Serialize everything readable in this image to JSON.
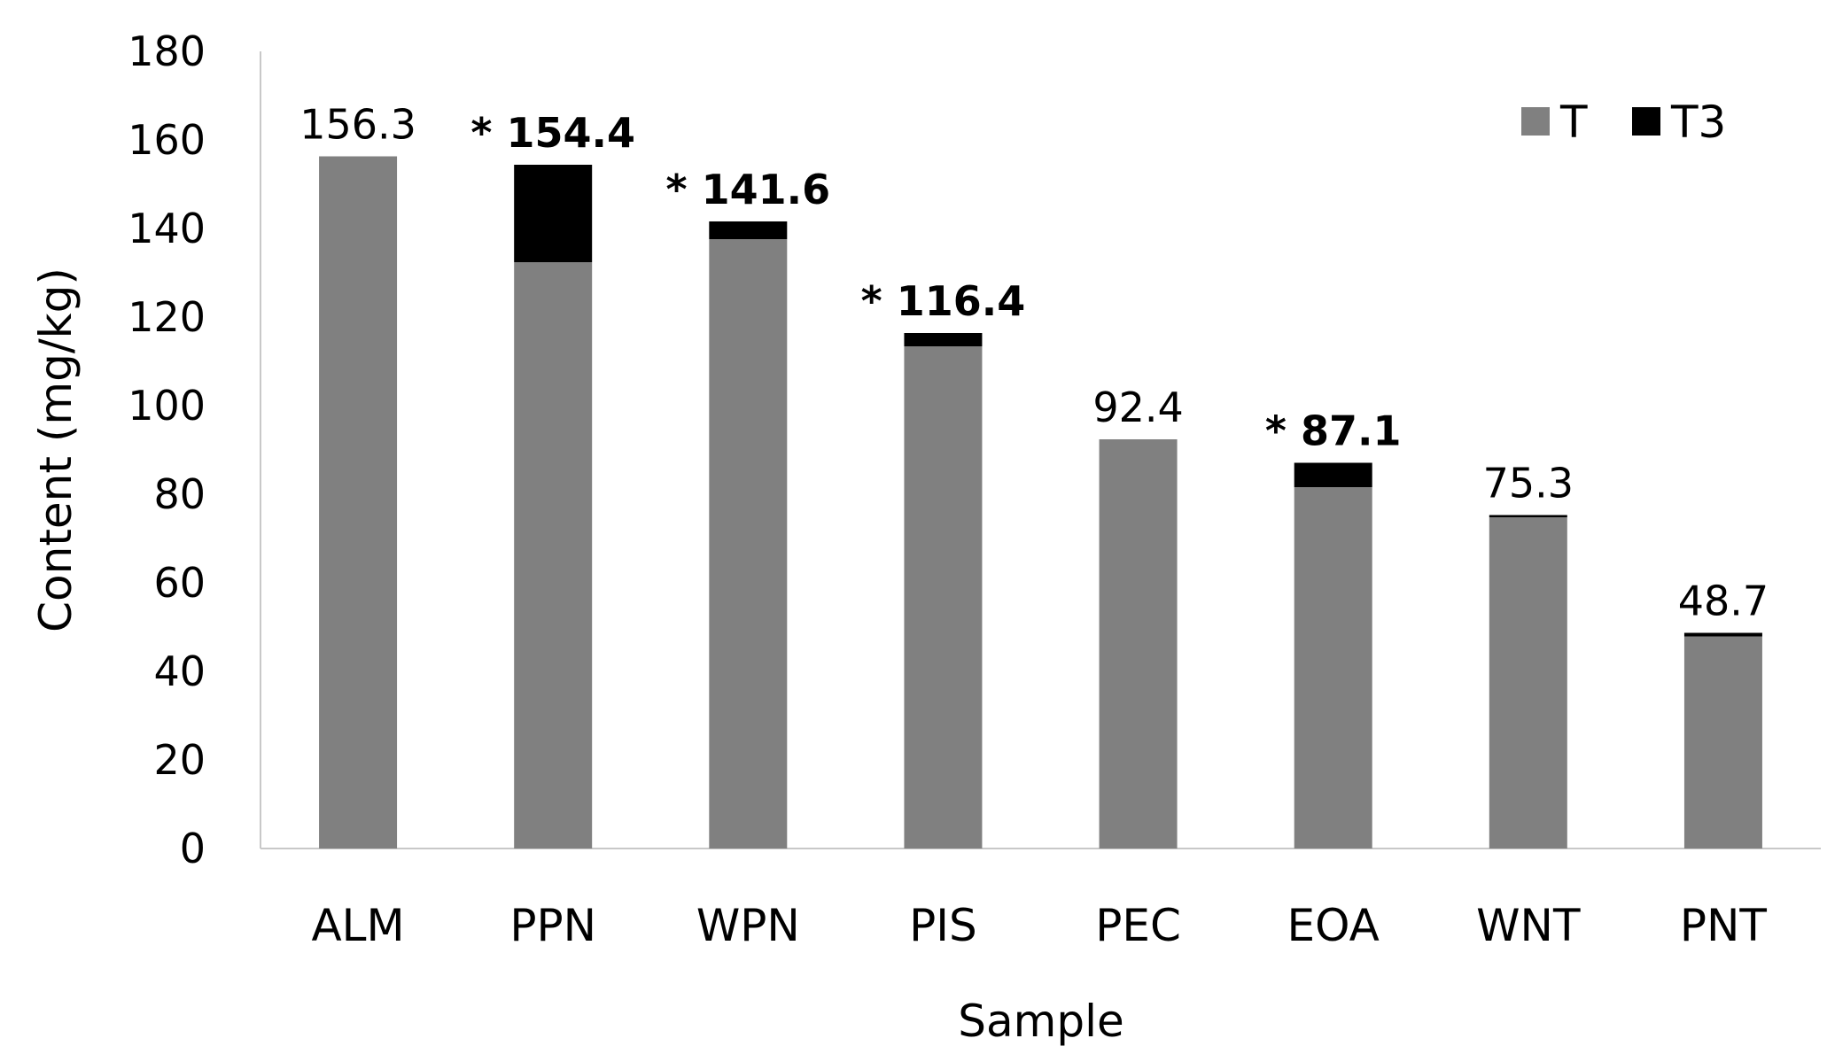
{
  "chart_data": {
    "type": "bar",
    "stacked": true,
    "title": "",
    "xlabel": "Sample",
    "ylabel": "Content (mg/kg)",
    "ylim": [
      0,
      180
    ],
    "yticks": [
      0,
      20,
      40,
      60,
      80,
      100,
      120,
      140,
      160,
      180
    ],
    "grid": false,
    "legend_position": "top-right",
    "categories": [
      "ALM",
      "PPN",
      "WPN",
      "PIS",
      "PEC",
      "EOA",
      "WNT",
      "PNT"
    ],
    "series": [
      {
        "name": "T",
        "color": "#808080",
        "values": [
          156.3,
          132.4,
          137.6,
          113.4,
          92.4,
          81.6,
          74.8,
          47.9
        ]
      },
      {
        "name": "T3",
        "color": "#000000",
        "values": [
          0,
          22.0,
          4.0,
          3.0,
          0,
          5.5,
          0.5,
          0.8
        ]
      }
    ],
    "totals": [
      {
        "text": "156.3",
        "marker": "",
        "bold": false
      },
      {
        "text": "154.4",
        "marker": "*",
        "bold": true
      },
      {
        "text": "141.6",
        "marker": "*",
        "bold": true
      },
      {
        "text": "116.4",
        "marker": "*",
        "bold": true
      },
      {
        "text": "92.4",
        "marker": "",
        "bold": false
      },
      {
        "text": "87.1",
        "marker": "*",
        "bold": true
      },
      {
        "text": "75.3",
        "marker": "",
        "bold": false
      },
      {
        "text": "48.7",
        "marker": "",
        "bold": false
      }
    ]
  }
}
